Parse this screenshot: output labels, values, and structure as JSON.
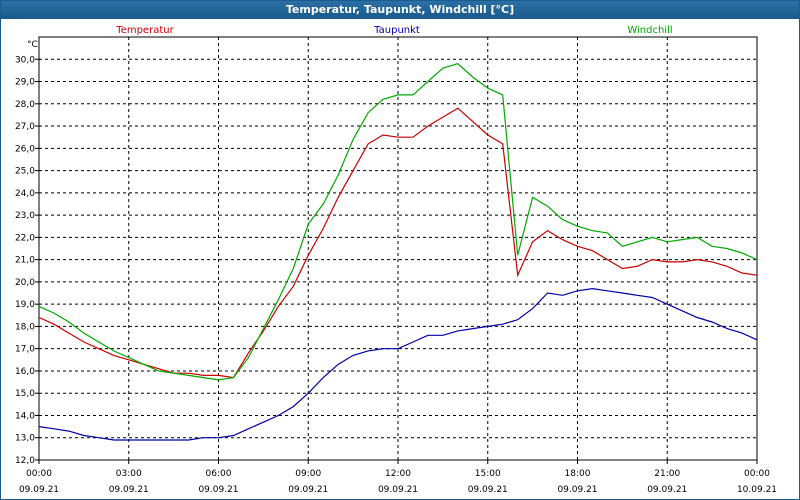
{
  "window": {
    "title": "Temperatur, Taupunkt, Windchill [°C]"
  },
  "chart_data": {
    "type": "line",
    "title": "Temperatur, Taupunkt, Windchill [°C]",
    "ylabel": "°C",
    "ylim": [
      12.0,
      31.0
    ],
    "yticks": [
      "12,0",
      "13,0",
      "14,0",
      "15,0",
      "16,0",
      "17,0",
      "18,0",
      "19,0",
      "20,0",
      "21,0",
      "22,0",
      "23,0",
      "24,0",
      "25,0",
      "26,0",
      "27,0",
      "28,0",
      "29,0",
      "30,0"
    ],
    "xticks": [
      {
        "time": "00:00",
        "date": "09.09.21"
      },
      {
        "time": "03:00",
        "date": "09.09.21"
      },
      {
        "time": "06:00",
        "date": "09.09.21"
      },
      {
        "time": "09:00",
        "date": "09.09.21"
      },
      {
        "time": "12:00",
        "date": "09.09.21"
      },
      {
        "time": "15:00",
        "date": "09.09.21"
      },
      {
        "time": "18:00",
        "date": "09.09.21"
      },
      {
        "time": "21:00",
        "date": "09.09.21"
      },
      {
        "time": "00:00",
        "date": "10.09.21"
      }
    ],
    "grid": true,
    "legend_position": "top",
    "hours": [
      0,
      0.5,
      1,
      1.5,
      2,
      2.5,
      3,
      3.5,
      4,
      4.5,
      5,
      5.5,
      6,
      6.5,
      7,
      7.5,
      8,
      8.5,
      9,
      9.5,
      10,
      10.5,
      11,
      11.5,
      12,
      12.5,
      13,
      13.5,
      14,
      14.5,
      15,
      15.5,
      16,
      16.5,
      17,
      17.5,
      18,
      18.5,
      19,
      19.5,
      20,
      20.5,
      21,
      21.5,
      22,
      22.5,
      23,
      23.5,
      24
    ],
    "series": [
      {
        "name": "Temperatur",
        "color": "#cc0000",
        "values": [
          18.4,
          18.1,
          17.7,
          17.3,
          17.0,
          16.7,
          16.5,
          16.3,
          16.1,
          15.9,
          15.9,
          15.8,
          15.8,
          15.7,
          16.8,
          17.8,
          18.9,
          19.8,
          21.2,
          22.4,
          23.8,
          25.0,
          26.2,
          26.6,
          26.5,
          26.5,
          27.0,
          27.4,
          27.8,
          27.2,
          26.6,
          26.2,
          20.3,
          21.8,
          22.3,
          21.9,
          21.6,
          21.4,
          21.0,
          20.6,
          20.7,
          21.0,
          20.9,
          20.9,
          21.0,
          20.9,
          20.7,
          20.4,
          20.3
        ]
      },
      {
        "name": "Taupunkt",
        "color": "#0000aa",
        "values": [
          13.5,
          13.4,
          13.3,
          13.1,
          13.0,
          12.9,
          12.9,
          12.9,
          12.9,
          12.9,
          12.9,
          13.0,
          13.0,
          13.1,
          13.4,
          13.7,
          14.0,
          14.4,
          15.0,
          15.7,
          16.3,
          16.7,
          16.9,
          17.0,
          17.0,
          17.3,
          17.6,
          17.6,
          17.8,
          17.9,
          18.0,
          18.1,
          18.3,
          18.8,
          19.5,
          19.4,
          19.6,
          19.7,
          19.6,
          19.5,
          19.4,
          19.3,
          19.0,
          18.7,
          18.4,
          18.2,
          17.9,
          17.7,
          17.4
        ]
      },
      {
        "name": "Windchill",
        "color": "#00aa00",
        "values": [
          18.9,
          18.6,
          18.2,
          17.7,
          17.3,
          16.9,
          16.6,
          16.3,
          16.0,
          15.9,
          15.8,
          15.7,
          15.6,
          15.7,
          16.6,
          17.9,
          19.2,
          20.6,
          22.6,
          23.5,
          24.8,
          26.4,
          27.6,
          28.2,
          28.4,
          28.4,
          29.0,
          29.6,
          29.8,
          29.2,
          28.7,
          28.4,
          21.2,
          23.8,
          23.4,
          22.8,
          22.5,
          22.3,
          22.2,
          21.6,
          21.8,
          22.0,
          21.8,
          21.9,
          22.0,
          21.6,
          21.5,
          21.3,
          21.0
        ]
      }
    ]
  }
}
